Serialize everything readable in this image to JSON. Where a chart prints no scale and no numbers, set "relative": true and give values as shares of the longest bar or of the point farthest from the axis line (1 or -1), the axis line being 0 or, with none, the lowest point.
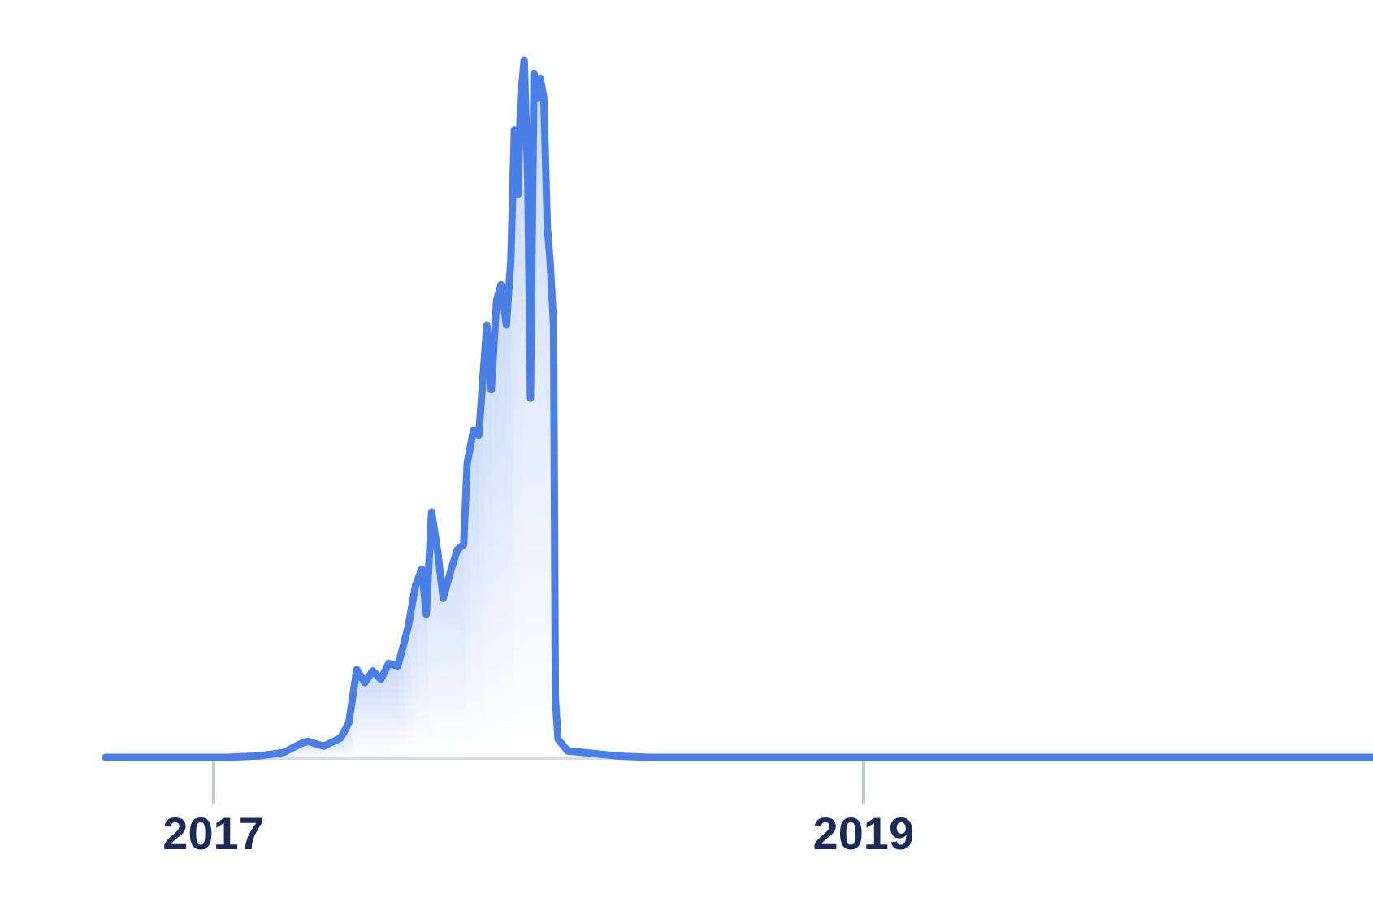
{
  "chart_data": {
    "type": "area",
    "relative": true,
    "x": [
      "2016-09-03",
      "2017-01-17",
      "2017-02-22",
      "2017-03-22",
      "2017-04-09",
      "2017-04-18",
      "2017-05-06",
      "2017-05-25",
      "2017-06-03",
      "2017-06-12",
      "2017-06-21",
      "2017-06-30",
      "2017-07-09",
      "2017-07-18",
      "2017-07-28",
      "2017-08-02",
      "2017-08-09",
      "2017-08-17",
      "2017-08-24",
      "2017-08-29",
      "2017-09-04",
      "2017-09-11",
      "2017-09-17",
      "2017-09-26",
      "2017-10-03",
      "2017-10-10",
      "2017-10-14",
      "2017-10-21",
      "2017-10-27",
      "2017-11-01",
      "2017-11-05",
      "2017-11-10",
      "2017-11-16",
      "2017-11-21",
      "2017-11-27",
      "2017-12-02",
      "2017-12-06",
      "2017-12-10",
      "2017-12-13",
      "2017-12-17",
      "2017-12-21",
      "2017-12-24",
      "2017-12-28",
      "2018-01-01",
      "2018-01-04",
      "2018-01-08",
      "2018-01-12",
      "2018-01-15",
      "2018-01-19",
      "2018-01-21",
      "2018-01-24",
      "2018-02-04",
      "2018-02-22",
      "2018-03-31",
      "2018-05-06",
      "2020-07-27"
    ],
    "series": [
      {
        "color": "#4a7fe8",
        "values": [
          0,
          0,
          0.002,
          0.007,
          0.019,
          0.023,
          0.016,
          0.028,
          0.049,
          0.126,
          0.107,
          0.124,
          0.112,
          0.135,
          0.131,
          0.154,
          0.189,
          0.247,
          0.27,
          0.205,
          0.352,
          0.294,
          0.228,
          0.27,
          0.298,
          0.305,
          0.422,
          0.469,
          0.462,
          0.55,
          0.62,
          0.527,
          0.655,
          0.678,
          0.62,
          0.714,
          0.9,
          0.807,
          0.946,
          1.0,
          0.83,
          0.515,
          0.981,
          0.946,
          0.974,
          0.946,
          0.76,
          0.713,
          0.62,
          0.084,
          0.026,
          0.009,
          0.007,
          0.002,
          0,
          0
        ]
      }
    ],
    "xlim": [
      "2016-09-03",
      "2020-07-27"
    ],
    "xticks": [
      "2017",
      "2019"
    ],
    "grid": false
  }
}
